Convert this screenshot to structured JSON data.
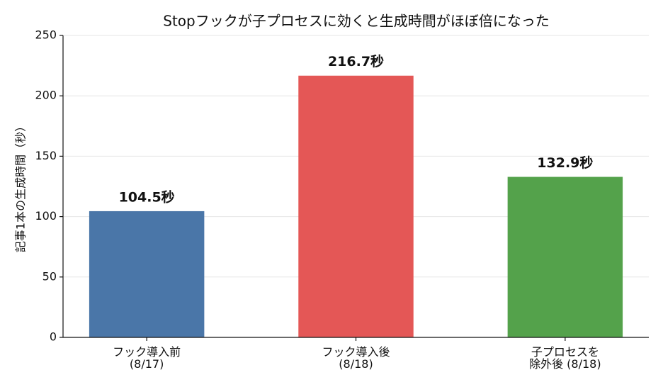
{
  "chart_data": {
    "type": "bar",
    "title": "Stopフックが子プロセスに効くと生成時間がほぼ倍になった",
    "y_label": "記事1本の生成時間（秒）",
    "categories": [
      "フック導入前\n(8/17)",
      "フック導入後\n(8/18)",
      "子プロセスを\n除外後 (8/18)"
    ],
    "values": [
      104.5,
      216.7,
      132.9
    ],
    "value_labels": [
      "104.5秒",
      "216.7秒",
      "132.9秒"
    ],
    "colors": [
      "#4a76a8",
      "#e45756",
      "#54a24b"
    ],
    "ylim": [
      0,
      250
    ],
    "yticks": [
      0,
      50,
      100,
      150,
      200,
      250
    ],
    "grid": true
  }
}
